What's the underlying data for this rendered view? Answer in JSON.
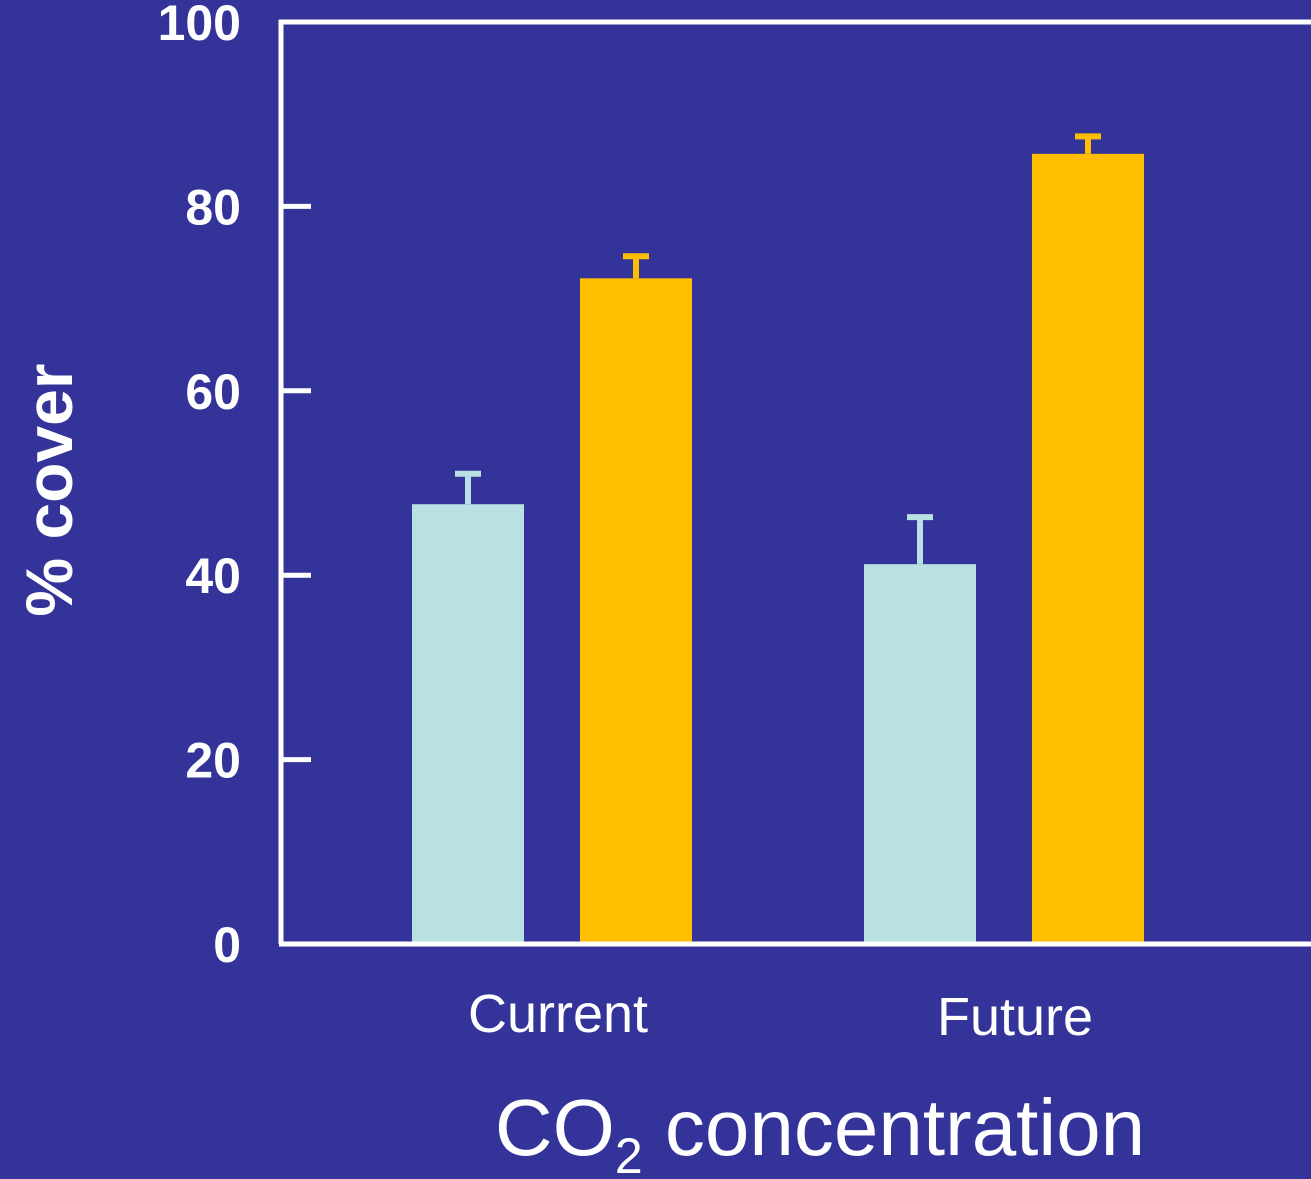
{
  "colors": {
    "background": "#333399",
    "axis": "#ffffff",
    "text": "#ffffff"
  },
  "chart_data": {
    "type": "bar",
    "title": "",
    "ylabel": "% cover",
    "xlabel": {
      "main": "CO",
      "subscript": "2",
      "rest": " concentration"
    },
    "ylim": [
      0,
      100
    ],
    "yticks": [
      0,
      20,
      40,
      60,
      80,
      100
    ],
    "grid": false,
    "legend": "none",
    "categories": [
      "Current",
      "Future"
    ],
    "series": [
      {
        "color": "#b9e0e3",
        "values": [
          47.7,
          41.2
        ],
        "error": [
          3.3,
          5.1
        ]
      },
      {
        "color": "#ffbf00",
        "values": [
          72.2,
          85.7
        ],
        "error": [
          2.4,
          1.9
        ]
      }
    ]
  }
}
